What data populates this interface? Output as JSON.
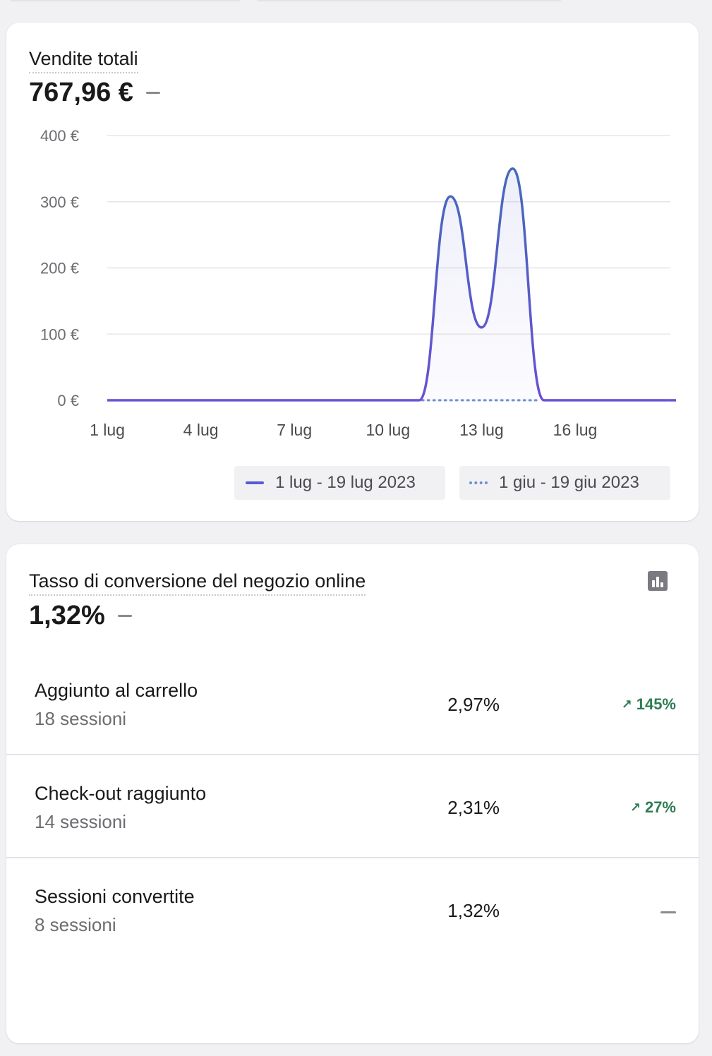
{
  "sales_card": {
    "title": "Vendite totali",
    "value": "767,96 €"
  },
  "chart_data": {
    "type": "line",
    "x": [
      "1 lug",
      "2 lug",
      "3 lug",
      "4 lug",
      "5 lug",
      "6 lug",
      "7 lug",
      "8 lug",
      "9 lug",
      "10 lug",
      "11 lug",
      "12 lug",
      "13 lug",
      "14 lug",
      "15 lug",
      "16 lug",
      "17 lug",
      "18 lug",
      "19 lug"
    ],
    "xticks": [
      "1 lug",
      "4 lug",
      "7 lug",
      "10 lug",
      "13 lug",
      "16 lug"
    ],
    "yticks": [
      "0 €",
      "100 €",
      "200 €",
      "300 €",
      "400 €"
    ],
    "ylim": [
      0,
      400
    ],
    "series": [
      {
        "name": "1 lug - 19 lug 2023",
        "style": "solid",
        "color": "#5a5bd1",
        "values": [
          0,
          0,
          0,
          0,
          0,
          0,
          0,
          0,
          0,
          0,
          0,
          308,
          110,
          350,
          0,
          0,
          0,
          0,
          0
        ]
      },
      {
        "name": "1 giu - 19 giu 2023",
        "style": "dotted",
        "color": "#6e8ed6",
        "values": [
          0,
          0,
          0,
          0,
          0,
          0,
          0,
          0,
          0,
          0,
          0,
          0,
          0,
          0,
          0,
          0,
          0,
          0,
          0
        ]
      }
    ],
    "grid": true,
    "legend": "bottom-right"
  },
  "conversion_card": {
    "title": "Tasso di conversione del negozio online",
    "value": "1,32%",
    "icon": "bar-chart-icon",
    "rows": [
      {
        "label": "Aggiunto al carrello",
        "sub": "18 sessioni",
        "value": "2,97%",
        "change": "145%",
        "trend": "up"
      },
      {
        "label": "Check-out raggiunto",
        "sub": "14 sessioni",
        "value": "2,31%",
        "change": "27%",
        "trend": "up"
      },
      {
        "label": "Sessioni convertite",
        "sub": "8 sessioni",
        "value": "1,32%",
        "change": "",
        "trend": "none"
      }
    ]
  },
  "colors": {
    "accent": "#5a5bd1",
    "positive": "#2e7d53",
    "background": "#f1f1f3"
  }
}
